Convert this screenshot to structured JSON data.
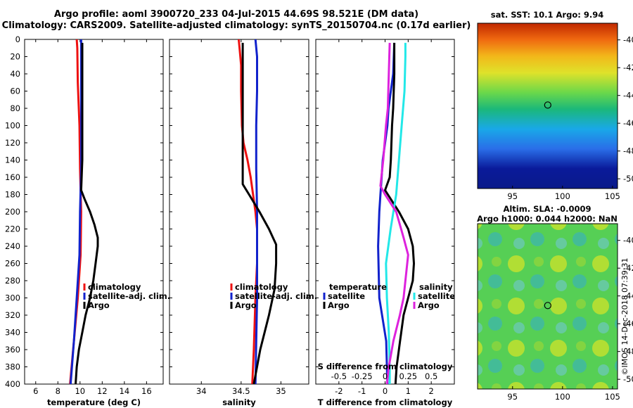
{
  "header": {
    "line1": "Argo profile: aoml 3900720_233 04-Jul-2015 44.69S 98.521E (DM data)",
    "line2": "Climatology: CARS2009. Satellite-adjusted climatology: synTS_20150704.nc (0.17d earlier)"
  },
  "colors": {
    "climatology": "#ee1111",
    "satellite": "#1122cc",
    "argo": "#000000",
    "salinity_argo_diff": "#dd22dd",
    "salinity_sat_diff": "#22e8e8"
  },
  "chart_data": [
    {
      "id": "temperature",
      "type": "line",
      "xlabel": "temperature (deg C)",
      "xlim": [
        5,
        17.5
      ],
      "xticks": [
        6,
        8,
        10,
        12,
        14,
        16
      ],
      "ylim": [
        0,
        400
      ],
      "yticks": [
        0,
        20,
        40,
        60,
        80,
        100,
        120,
        140,
        160,
        180,
        200,
        220,
        240,
        260,
        280,
        300,
        320,
        340,
        360,
        380,
        400
      ],
      "legend": [
        "climatology",
        "satellite-adj. clim.",
        "Argo"
      ],
      "series": [
        {
          "name": "climatology",
          "color": "climatology",
          "depth": [
            0,
            10,
            50,
            100,
            150,
            200,
            250,
            300,
            350,
            400
          ],
          "values": [
            9.7,
            9.75,
            9.8,
            9.95,
            10.0,
            10.1,
            10.05,
            9.8,
            9.45,
            9.1
          ]
        },
        {
          "name": "satellite-adj. clim.",
          "color": "satellite",
          "depth": [
            0,
            10,
            50,
            100,
            150,
            200,
            250,
            300,
            350,
            400
          ],
          "values": [
            10.1,
            10.1,
            10.1,
            10.1,
            10.1,
            10.0,
            9.95,
            9.7,
            9.45,
            9.15
          ]
        },
        {
          "name": "Argo",
          "color": "argo",
          "depth": [
            4,
            20,
            60,
            100,
            140,
            175,
            185,
            200,
            215,
            230,
            240,
            260,
            280,
            300,
            320,
            340,
            360,
            380,
            400
          ],
          "values": [
            10.2,
            10.2,
            10.2,
            10.2,
            10.2,
            10.1,
            10.4,
            10.9,
            11.3,
            11.6,
            11.6,
            11.4,
            11.2,
            10.9,
            10.5,
            10.2,
            9.9,
            9.7,
            9.6
          ]
        }
      ]
    },
    {
      "id": "salinity",
      "type": "line",
      "xlabel": "salinity",
      "xlim": [
        33.6,
        35.35
      ],
      "xticks": [
        34,
        34.5,
        35
      ],
      "ylim": [
        0,
        400
      ],
      "legend": [
        "climatology",
        "satellite-adj. clim.",
        "Argo"
      ],
      "series": [
        {
          "name": "climatology",
          "color": "climatology",
          "depth": [
            0,
            10,
            30,
            60,
            100,
            120,
            140,
            160,
            180,
            200,
            220,
            260,
            300,
            360,
            400
          ],
          "values": [
            34.47,
            34.48,
            34.5,
            34.5,
            34.51,
            34.53,
            34.58,
            34.62,
            34.65,
            34.68,
            34.7,
            34.7,
            34.68,
            34.66,
            34.64
          ]
        },
        {
          "name": "satellite-adj. clim.",
          "color": "satellite",
          "depth": [
            0,
            20,
            60,
            100,
            150,
            200,
            250,
            300,
            350,
            400
          ],
          "values": [
            34.68,
            34.7,
            34.7,
            34.69,
            34.69,
            34.7,
            34.7,
            34.7,
            34.69,
            34.68
          ]
        },
        {
          "name": "Argo",
          "color": "argo",
          "depth": [
            4,
            20,
            60,
            100,
            140,
            168,
            180,
            200,
            220,
            238,
            260,
            290,
            320,
            360,
            400
          ],
          "values": [
            34.52,
            34.52,
            34.52,
            34.52,
            34.52,
            34.52,
            34.6,
            34.73,
            34.85,
            34.94,
            34.94,
            34.92,
            34.85,
            34.74,
            34.66
          ]
        }
      ]
    },
    {
      "id": "difference",
      "type": "line",
      "xlabel": "T difference from climatology",
      "xlabel2": "S difference from climatology",
      "xlim": [
        -3,
        3
      ],
      "xticks": [
        -2,
        -1,
        0,
        1,
        2
      ],
      "xticks2": [
        -0.5,
        -0.25,
        0,
        0.25,
        0.5
      ],
      "xticks2_labels": [
        "-0.5",
        "-0.25",
        "0",
        "0.25",
        "0.5"
      ],
      "ylim": [
        0,
        400
      ],
      "legend_temperature_title": "temperature",
      "legend_salinity_title": "salinity",
      "legend_temperature": [
        "satellite",
        "Argo"
      ],
      "legend_salinity": [
        "satellite",
        "Argo"
      ],
      "series": [
        {
          "name": "temperature satellite",
          "color": "satellite",
          "depth": [
            4,
            40,
            80,
            100,
            140,
            160,
            180,
            200,
            240,
            300,
            350,
            400
          ],
          "values": [
            0.4,
            0.35,
            0.15,
            0.1,
            -0.1,
            -0.15,
            -0.2,
            -0.25,
            -0.3,
            -0.25,
            0.05,
            0.1
          ]
        },
        {
          "name": "temperature Argo",
          "color": "argo",
          "depth": [
            4,
            40,
            80,
            100,
            140,
            160,
            175,
            200,
            220,
            240,
            260,
            280,
            300,
            320,
            350,
            380,
            400
          ],
          "values": [
            0.4,
            0.4,
            0.35,
            0.3,
            0.25,
            0.2,
            0.0,
            0.6,
            1.0,
            1.2,
            1.25,
            1.2,
            1.0,
            0.8,
            0.65,
            0.5,
            0.45
          ]
        },
        {
          "name": "salinity satellite",
          "color": "salinity_sat_diff",
          "depth": [
            4,
            20,
            60,
            100,
            140,
            180,
            220,
            260,
            300,
            340,
            380,
            400
          ],
          "values": [
            0.22,
            0.22,
            0.21,
            0.18,
            0.15,
            0.12,
            0.06,
            0.01,
            0.02,
            0.04,
            0.05,
            0.05
          ]
        },
        {
          "name": "salinity Argo",
          "color": "salinity_argo_diff",
          "depth": [
            4,
            40,
            80,
            100,
            140,
            170,
            180,
            200,
            230,
            250,
            280,
            300,
            320,
            350,
            380,
            400
          ],
          "values": [
            0.05,
            0.04,
            0.03,
            0.01,
            -0.02,
            -0.05,
            0.0,
            0.12,
            0.2,
            0.25,
            0.22,
            0.2,
            0.16,
            0.09,
            0.04,
            0.02
          ]
        }
      ]
    },
    {
      "id": "sst_map",
      "type": "heatmap",
      "title": "sat. SST: 10.1  Argo: 9.94",
      "xticks": [
        95,
        100,
        105
      ],
      "yticks": [
        -40,
        -42,
        -44,
        -46,
        -48,
        -50
      ],
      "xlim": [
        91.5,
        105.5
      ],
      "ylim": [
        -50.7,
        -38.8
      ],
      "marker": {
        "lon": 98.521,
        "lat": -44.69
      }
    },
    {
      "id": "sla_map",
      "type": "heatmap",
      "title": "Altim. SLA: -0.0009",
      "subtitle": "Argo h1000: 0.044 h2000: NaN",
      "xticks": [
        95,
        100,
        105
      ],
      "yticks": [
        -40,
        -42,
        -44,
        -46,
        -48,
        -50
      ],
      "xlim": [
        91.5,
        105.5
      ],
      "ylim": [
        -50.7,
        -38.8
      ],
      "marker": {
        "lon": 98.521,
        "lat": -44.69
      }
    }
  ],
  "credit": "©IMOS 14-Dec-2018 07:39:31"
}
